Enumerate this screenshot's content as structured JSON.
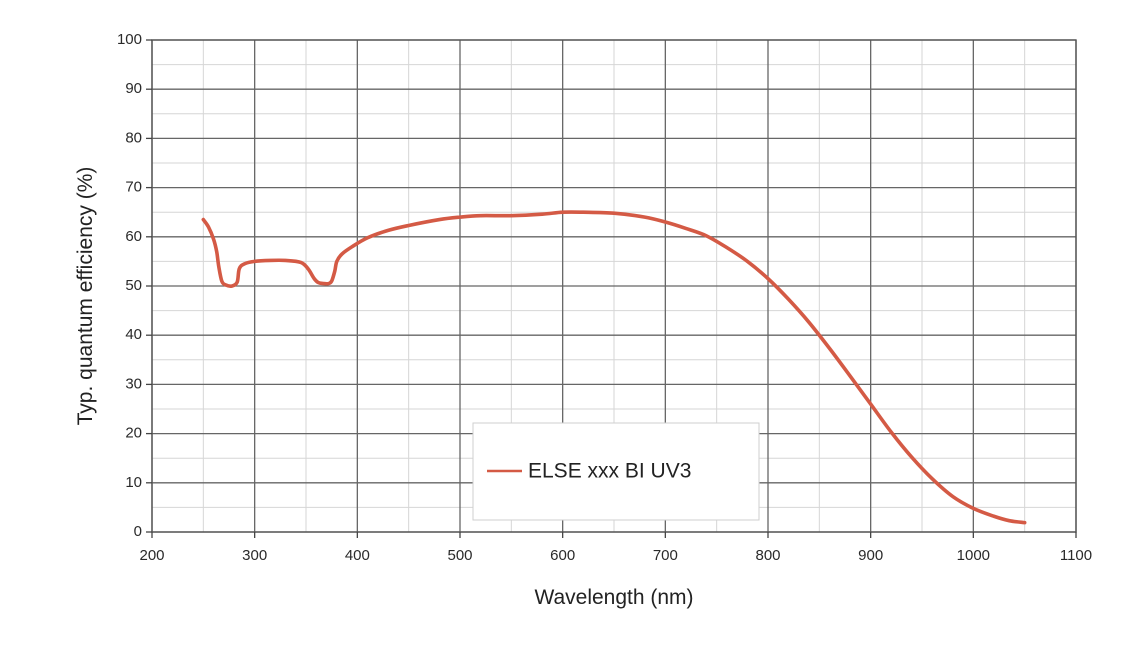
{
  "chart_data": {
    "type": "line",
    "title": "",
    "xlabel": "Wavelength (nm)",
    "ylabel": "Typ. quantum efficiency (%)",
    "xlim": [
      200,
      1100
    ],
    "ylim": [
      0,
      100
    ],
    "x_ticks": [
      200,
      300,
      400,
      500,
      600,
      700,
      800,
      900,
      1000,
      1100
    ],
    "y_ticks": [
      0,
      10,
      20,
      30,
      40,
      50,
      60,
      70,
      80,
      90,
      100
    ],
    "x_minor_step": 50,
    "y_minor_step": 5,
    "grid": true,
    "legend_position": "bottom-center",
    "series": [
      {
        "name": "ELSE xxx BI UV3",
        "color": "#d45a45",
        "x": [
          250,
          255,
          260,
          263,
          265,
          268,
          272,
          278,
          283,
          285,
          290,
          300,
          315,
          330,
          345,
          352,
          358,
          362,
          367,
          372,
          375,
          378,
          380,
          385,
          395,
          410,
          430,
          450,
          480,
          500,
          520,
          550,
          580,
          600,
          620,
          650,
          680,
          700,
          720,
          740,
          760,
          780,
          800,
          820,
          840,
          860,
          880,
          900,
          920,
          940,
          960,
          980,
          1000,
          1020,
          1035,
          1050
        ],
        "y": [
          63.5,
          62,
          59.5,
          57,
          54,
          51,
          50.2,
          50,
          50.8,
          53.5,
          54.5,
          55,
          55.2,
          55.2,
          54.8,
          53.5,
          51.5,
          50.7,
          50.5,
          50.5,
          51,
          53,
          55,
          56.5,
          58,
          59.8,
          61.3,
          62.3,
          63.5,
          64,
          64.3,
          64.3,
          64.6,
          65,
          65,
          64.8,
          64,
          63,
          61.7,
          60.2,
          57.8,
          55,
          51.5,
          47.3,
          42.6,
          37.3,
          31.7,
          26,
          20.3,
          15.2,
          10.8,
          7.2,
          4.8,
          3.2,
          2.3,
          1.9
        ]
      }
    ]
  }
}
